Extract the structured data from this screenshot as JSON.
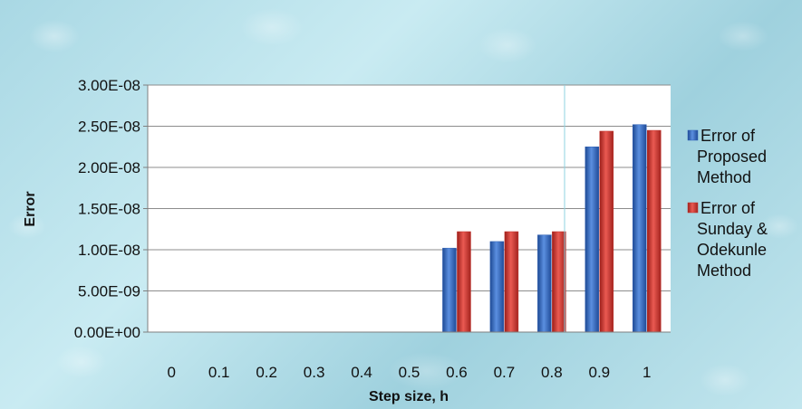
{
  "chart_data": {
    "type": "bar",
    "title": "",
    "xlabel": "Step size, h",
    "ylabel": "Error",
    "categories": [
      "0",
      "0.1",
      "0.2",
      "0.3",
      "0.4",
      "0.5",
      "0.6",
      "0.7",
      "0.8",
      "0.9",
      "1"
    ],
    "y_tick_labels": [
      "0.00E+00",
      "5.00E-09",
      "1.00E-08",
      "1.50E-08",
      "2.00E-08",
      "2.50E-08",
      "3.00E-08"
    ],
    "ylim": [
      0,
      3e-08
    ],
    "y_ticks": [
      0,
      5e-09,
      1e-08,
      1.5e-08,
      2e-08,
      2.5e-08,
      3e-08
    ],
    "grid": true,
    "legend_position": "right",
    "series": [
      {
        "name": "Error of Proposed Method",
        "legend_lines": [
          "Error of",
          "Proposed",
          "Method"
        ],
        "color": "#2f5fb3",
        "values": [
          null,
          null,
          null,
          null,
          null,
          null,
          1.02e-08,
          1.1e-08,
          1.18e-08,
          2.25e-08,
          2.52e-08
        ]
      },
      {
        "name": "Error of Sunday & Odekunle Method",
        "legend_lines": [
          "Error of",
          "Sunday &",
          "Odekunle",
          "Method"
        ],
        "color": "#c0302a",
        "values": [
          null,
          null,
          null,
          null,
          null,
          null,
          1.22e-08,
          1.22e-08,
          1.22e-08,
          2.44e-08,
          2.45e-08
        ]
      }
    ]
  }
}
